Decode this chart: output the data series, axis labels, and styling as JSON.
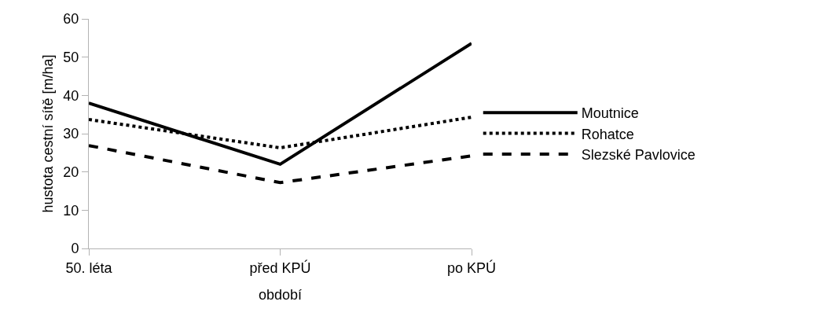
{
  "chart_data": {
    "type": "line",
    "xlabel": "období",
    "ylabel": "hustota cestní sítě [m/ha]",
    "categories": [
      "50. léta",
      "před KPÚ",
      "po KPÚ"
    ],
    "series": [
      {
        "name": "Moutnice",
        "color": "#000000",
        "line_style": "solid",
        "values": [
          38,
          22,
          53.6
        ]
      },
      {
        "name": "Rohatce",
        "color": "#000000",
        "line_style": "dotted",
        "values": [
          33.7,
          26.3,
          34.3
        ]
      },
      {
        "name": "Slezské Pavlovice",
        "color": "#000000",
        "line_style": "dashed",
        "values": [
          26.9,
          17.2,
          24.2
        ]
      }
    ],
    "ylim": [
      0,
      60
    ],
    "yticks": [
      0,
      10,
      20,
      30,
      40,
      50,
      60
    ],
    "legend": "right",
    "marker": "none"
  }
}
